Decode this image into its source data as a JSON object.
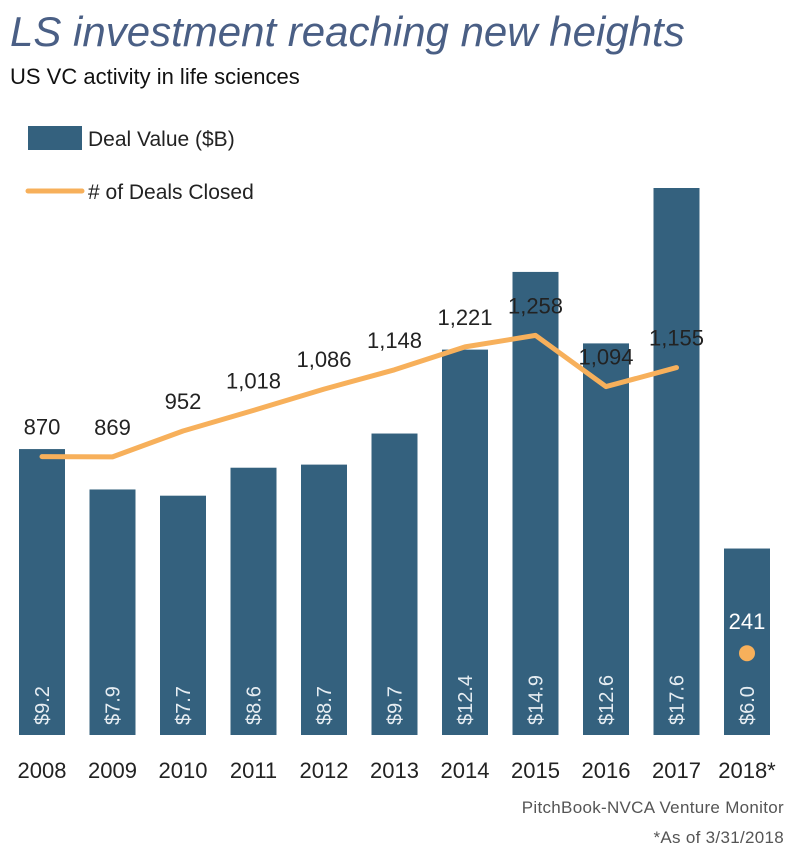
{
  "header": {
    "title": "LS investment reaching new heights",
    "subtitle": "US VC activity in life sciences"
  },
  "footer": {
    "source": "PitchBook-NVCA Venture Monitor",
    "footnote": "*As of 3/31/2018"
  },
  "colors": {
    "title": "#4a5f85",
    "bar": "#34617e",
    "line": "#f7b05b",
    "bar_label": "#e6edf2",
    "text": "#222222"
  },
  "chart_data": {
    "type": "bar",
    "title": "LS investment reaching new heights",
    "subtitle": "US VC activity in life sciences",
    "categories": [
      "2008",
      "2009",
      "2010",
      "2011",
      "2012",
      "2013",
      "2014",
      "2015",
      "2016",
      "2017",
      "2018*"
    ],
    "series": [
      {
        "name": "Deal Value ($B)",
        "type": "bar",
        "values": [
          9.2,
          7.9,
          7.7,
          8.6,
          8.7,
          9.7,
          12.4,
          14.9,
          12.6,
          17.6,
          6.0
        ],
        "labels": [
          "$9.2",
          "$7.9",
          "$7.7",
          "$8.6",
          "$8.7",
          "$9.7",
          "$12.4",
          "$14.9",
          "$12.6",
          "$17.6",
          "$6.0"
        ]
      },
      {
        "name": "# of Deals Closed",
        "type": "line",
        "values": [
          870,
          869,
          952,
          1018,
          1086,
          1148,
          1221,
          1258,
          1094,
          1155,
          241
        ],
        "labels": [
          "870",
          "869",
          "952",
          "1,018",
          "1,086",
          "1,148",
          "1,221",
          "1,258",
          "1,094",
          "1,155",
          "241"
        ],
        "line_break_before_last": true
      }
    ],
    "legend": [
      {
        "label": "Deal Value ($B)",
        "kind": "bar"
      },
      {
        "label": "# of Deals Closed",
        "kind": "line"
      }
    ],
    "legend_position": "top-left",
    "bar_axis_range": [
      0,
      17.6
    ],
    "line_axis_range": [
      0,
      1258
    ],
    "grid": false
  }
}
